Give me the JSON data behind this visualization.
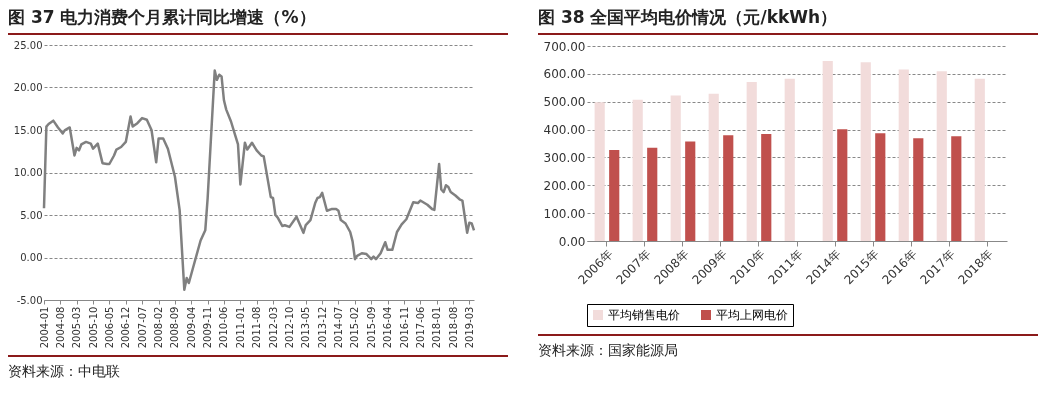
{
  "chart_data": [
    {
      "type": "line",
      "title": "图 37  电力消费个月累计同比增速（%）",
      "annotations": [
        "资料来源：中电联"
      ],
      "grid": "y",
      "legend": false,
      "marker": "none",
      "line_style": "solid",
      "xlim": [
        "2004-01",
        "2019-05"
      ],
      "xticks": [
        "2004-01",
        "2004-08",
        "2005-03",
        "2005-10",
        "2006-05",
        "2006-12",
        "2007-07",
        "2008-02",
        "2008-09",
        "2009-04",
        "2009-11",
        "2010-06",
        "2011-01",
        "2011-08",
        "2012-03",
        "2012-10",
        "2013-05",
        "2013-12",
        "2014-07",
        "2015-02",
        "2015-09",
        "2016-04",
        "2016-11",
        "2017-06",
        "2018-01",
        "2018-08",
        "2019-03"
      ],
      "ylim": [
        -5,
        25
      ],
      "yticks": [
        {
          "value": -5,
          "label": "-5.00"
        },
        {
          "value": 0,
          "label": "0.00"
        },
        {
          "value": 5,
          "label": "5.00"
        },
        {
          "value": 10,
          "label": "10.00"
        },
        {
          "value": 15,
          "label": "15.00"
        },
        {
          "value": 20,
          "label": "20.00"
        },
        {
          "value": 25,
          "label": "25.00"
        }
      ],
      "series": [
        {
          "color": "#808080",
          "x": [
            "2004-01",
            "2004-02",
            "2004-03",
            "2004-05",
            "2004-07",
            "2004-09",
            "2004-10",
            "2004-12",
            "2005-02",
            "2005-03",
            "2005-04",
            "2005-05",
            "2005-07",
            "2005-09",
            "2005-10",
            "2005-12",
            "2006-02",
            "2006-04",
            "2006-05",
            "2006-07",
            "2006-08",
            "2006-10",
            "2006-12",
            "2007-02",
            "2007-03",
            "2007-05",
            "2007-07",
            "2007-09",
            "2007-11",
            "2008-01",
            "2008-02",
            "2008-04",
            "2008-06",
            "2008-09",
            "2008-11",
            "2009-01",
            "2009-02",
            "2009-03",
            "2009-05",
            "2009-08",
            "2009-10",
            "2009-11",
            "2010-02",
            "2010-03",
            "2010-04",
            "2010-05",
            "2010-06",
            "2010-07",
            "2010-09",
            "2010-11",
            "2010-12",
            "2011-01",
            "2011-03",
            "2011-04",
            "2011-06",
            "2011-08",
            "2011-10",
            "2011-11",
            "2012-02",
            "2012-03",
            "2012-04",
            "2012-05",
            "2012-07",
            "2012-08",
            "2012-10",
            "2013-01",
            "2013-04",
            "2013-05",
            "2013-07",
            "2013-09",
            "2013-10",
            "2013-11",
            "2013-12",
            "2014-02",
            "2014-04",
            "2014-06",
            "2014-07",
            "2014-08",
            "2014-10",
            "2014-12",
            "2015-01",
            "2015-02",
            "2015-03",
            "2015-05",
            "2015-07",
            "2015-09",
            "2015-10",
            "2015-11",
            "2016-01",
            "2016-03",
            "2016-04",
            "2016-06",
            "2016-08",
            "2016-10",
            "2016-12",
            "2017-03",
            "2017-05",
            "2017-06",
            "2017-09",
            "2017-11",
            "2017-12",
            "2018-02",
            "2018-03",
            "2018-04",
            "2018-05",
            "2018-06",
            "2018-07",
            "2018-09",
            "2018-11",
            "2018-12",
            "2019-02",
            "2019-03",
            "2019-04",
            "2019-05"
          ],
          "values": [
            5.8,
            15.4,
            15.7,
            16.1,
            15.3,
            14.6,
            15.0,
            15.3,
            12.0,
            12.9,
            12.6,
            13.3,
            13.6,
            13.4,
            12.8,
            13.4,
            11.1,
            11.0,
            11.0,
            12.0,
            12.7,
            13.0,
            13.6,
            16.6,
            15.4,
            15.8,
            16.4,
            16.2,
            15.0,
            11.2,
            14.0,
            14.0,
            12.8,
            9.5,
            5.6,
            -3.8,
            -2.4,
            -3.0,
            -1.0,
            2.0,
            3.2,
            7.0,
            22.0,
            20.9,
            21.5,
            21.3,
            18.5,
            17.4,
            16.0,
            14.2,
            13.3,
            8.6,
            13.5,
            12.7,
            13.5,
            12.6,
            12.0,
            11.9,
            7.1,
            7.0,
            5.0,
            4.7,
            3.7,
            3.8,
            3.6,
            4.8,
            2.9,
            3.8,
            4.4,
            6.4,
            7.0,
            7.1,
            7.6,
            5.5,
            5.7,
            5.7,
            5.5,
            4.4,
            4.0,
            3.0,
            1.9,
            -0.2,
            0.2,
            0.5,
            0.4,
            -0.2,
            0.1,
            -0.2,
            0.5,
            1.8,
            0.9,
            0.9,
            3.0,
            3.9,
            4.5,
            6.5,
            6.4,
            6.7,
            6.2,
            5.7,
            5.6,
            11.0,
            8.0,
            7.7,
            8.5,
            8.3,
            7.7,
            7.3,
            6.8,
            6.7,
            2.9,
            4.1,
            4.0,
            3.2
          ]
        }
      ]
    },
    {
      "type": "bar",
      "title": "图 38  全国平均电价情况（元/kkWh）",
      "annotations": [
        "资料来源：国家能源局"
      ],
      "grid": "y",
      "legend": "bottom",
      "categories": [
        "2006年",
        "2007年",
        "2008年",
        "2009年",
        "2010年",
        "2011年",
        "2014年",
        "2015年",
        "2016年",
        "2017年",
        "2018年"
      ],
      "ylim": [
        0,
        700
      ],
      "yticks": [
        {
          "value": 0,
          "label": "0.00"
        },
        {
          "value": 100,
          "label": "100.00"
        },
        {
          "value": 200,
          "label": "200.00"
        },
        {
          "value": 300,
          "label": "300.00"
        },
        {
          "value": 400,
          "label": "400.00"
        },
        {
          "value": 500,
          "label": "500.00"
        },
        {
          "value": 600,
          "label": "600.00"
        },
        {
          "value": 700,
          "label": "700.00"
        }
      ],
      "series": [
        {
          "name": "平均销售电价",
          "color": "#f2dcdb",
          "values": [
            498,
            507,
            522,
            529,
            571,
            582,
            646,
            642,
            616,
            609,
            582
          ]
        },
        {
          "name": "平均上网电价",
          "color": "#c0504d",
          "values": [
            327,
            335,
            357,
            380,
            384,
            null,
            401,
            387,
            369,
            376,
            null
          ]
        }
      ]
    }
  ]
}
